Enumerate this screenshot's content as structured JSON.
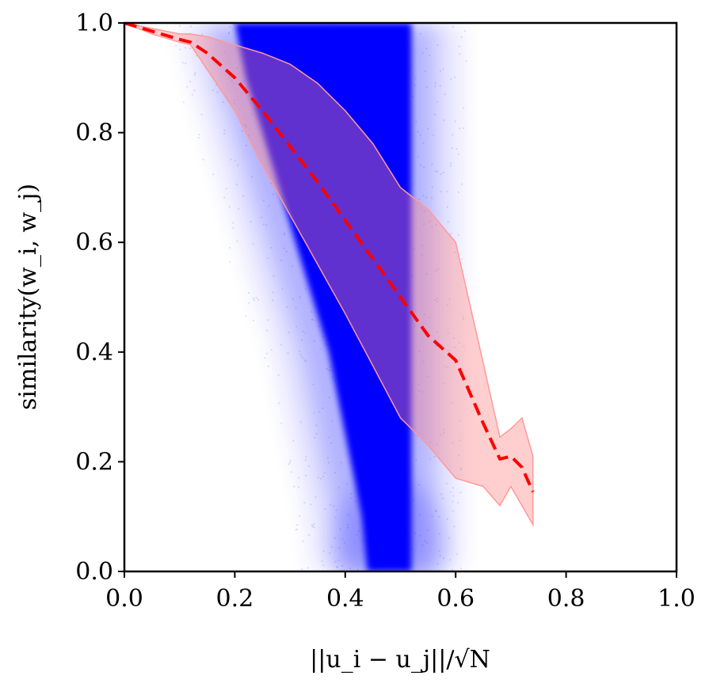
{
  "chart_data": {
    "type": "scatter",
    "title": "",
    "xlabel": "||u_i − u_j||/√N",
    "ylabel": "similarity(w_i, w_j)",
    "xlim": [
      0.0,
      1.0
    ],
    "ylim": [
      0.0,
      1.0
    ],
    "x_ticks": [
      "0.0",
      "0.2",
      "0.4",
      "0.6",
      "0.8",
      "1.0"
    ],
    "y_ticks": [
      "0.0",
      "0.2",
      "0.4",
      "0.6",
      "0.8",
      "1.0"
    ],
    "grid": false,
    "legend": "none",
    "colors": {
      "scatter": "#0000ff",
      "mean_line": "#ff0000",
      "band_fill": "#ff8080",
      "band_edge": "#ff9999"
    },
    "scatter_density_envelope": {
      "y": [
        1.0,
        0.9,
        0.8,
        0.7,
        0.6,
        0.5,
        0.4,
        0.3,
        0.2,
        0.1,
        0.0
      ],
      "x_left": [
        0.2,
        0.22,
        0.25,
        0.28,
        0.31,
        0.34,
        0.37,
        0.39,
        0.41,
        0.43,
        0.44
      ],
      "x_right": [
        0.52,
        0.52,
        0.52,
        0.52,
        0.52,
        0.52,
        0.52,
        0.52,
        0.52,
        0.52,
        0.52
      ]
    },
    "series": [
      {
        "type": "line",
        "style": "dashed",
        "x": [
          0.0,
          0.05,
          0.1,
          0.12,
          0.15,
          0.2,
          0.25,
          0.3,
          0.35,
          0.4,
          0.45,
          0.5,
          0.55,
          0.6,
          0.65,
          0.68,
          0.7,
          0.72,
          0.74
        ],
        "y": [
          1.0,
          0.985,
          0.97,
          0.965,
          0.945,
          0.9,
          0.84,
          0.775,
          0.71,
          0.64,
          0.57,
          0.5,
          0.43,
          0.385,
          0.27,
          0.205,
          0.21,
          0.19,
          0.145
        ]
      },
      {
        "type": "band",
        "x": [
          0.0,
          0.05,
          0.1,
          0.12,
          0.15,
          0.2,
          0.25,
          0.3,
          0.35,
          0.4,
          0.45,
          0.5,
          0.55,
          0.6,
          0.65,
          0.68,
          0.7,
          0.72,
          0.74
        ],
        "upper": [
          1.0,
          0.99,
          0.98,
          0.98,
          0.975,
          0.96,
          0.945,
          0.925,
          0.89,
          0.84,
          0.78,
          0.7,
          0.66,
          0.6,
          0.38,
          0.245,
          0.26,
          0.28,
          0.21
        ],
        "lower": [
          1.0,
          0.98,
          0.965,
          0.96,
          0.915,
          0.84,
          0.74,
          0.65,
          0.56,
          0.47,
          0.375,
          0.28,
          0.23,
          0.17,
          0.155,
          0.12,
          0.155,
          0.12,
          0.085
        ]
      }
    ]
  }
}
